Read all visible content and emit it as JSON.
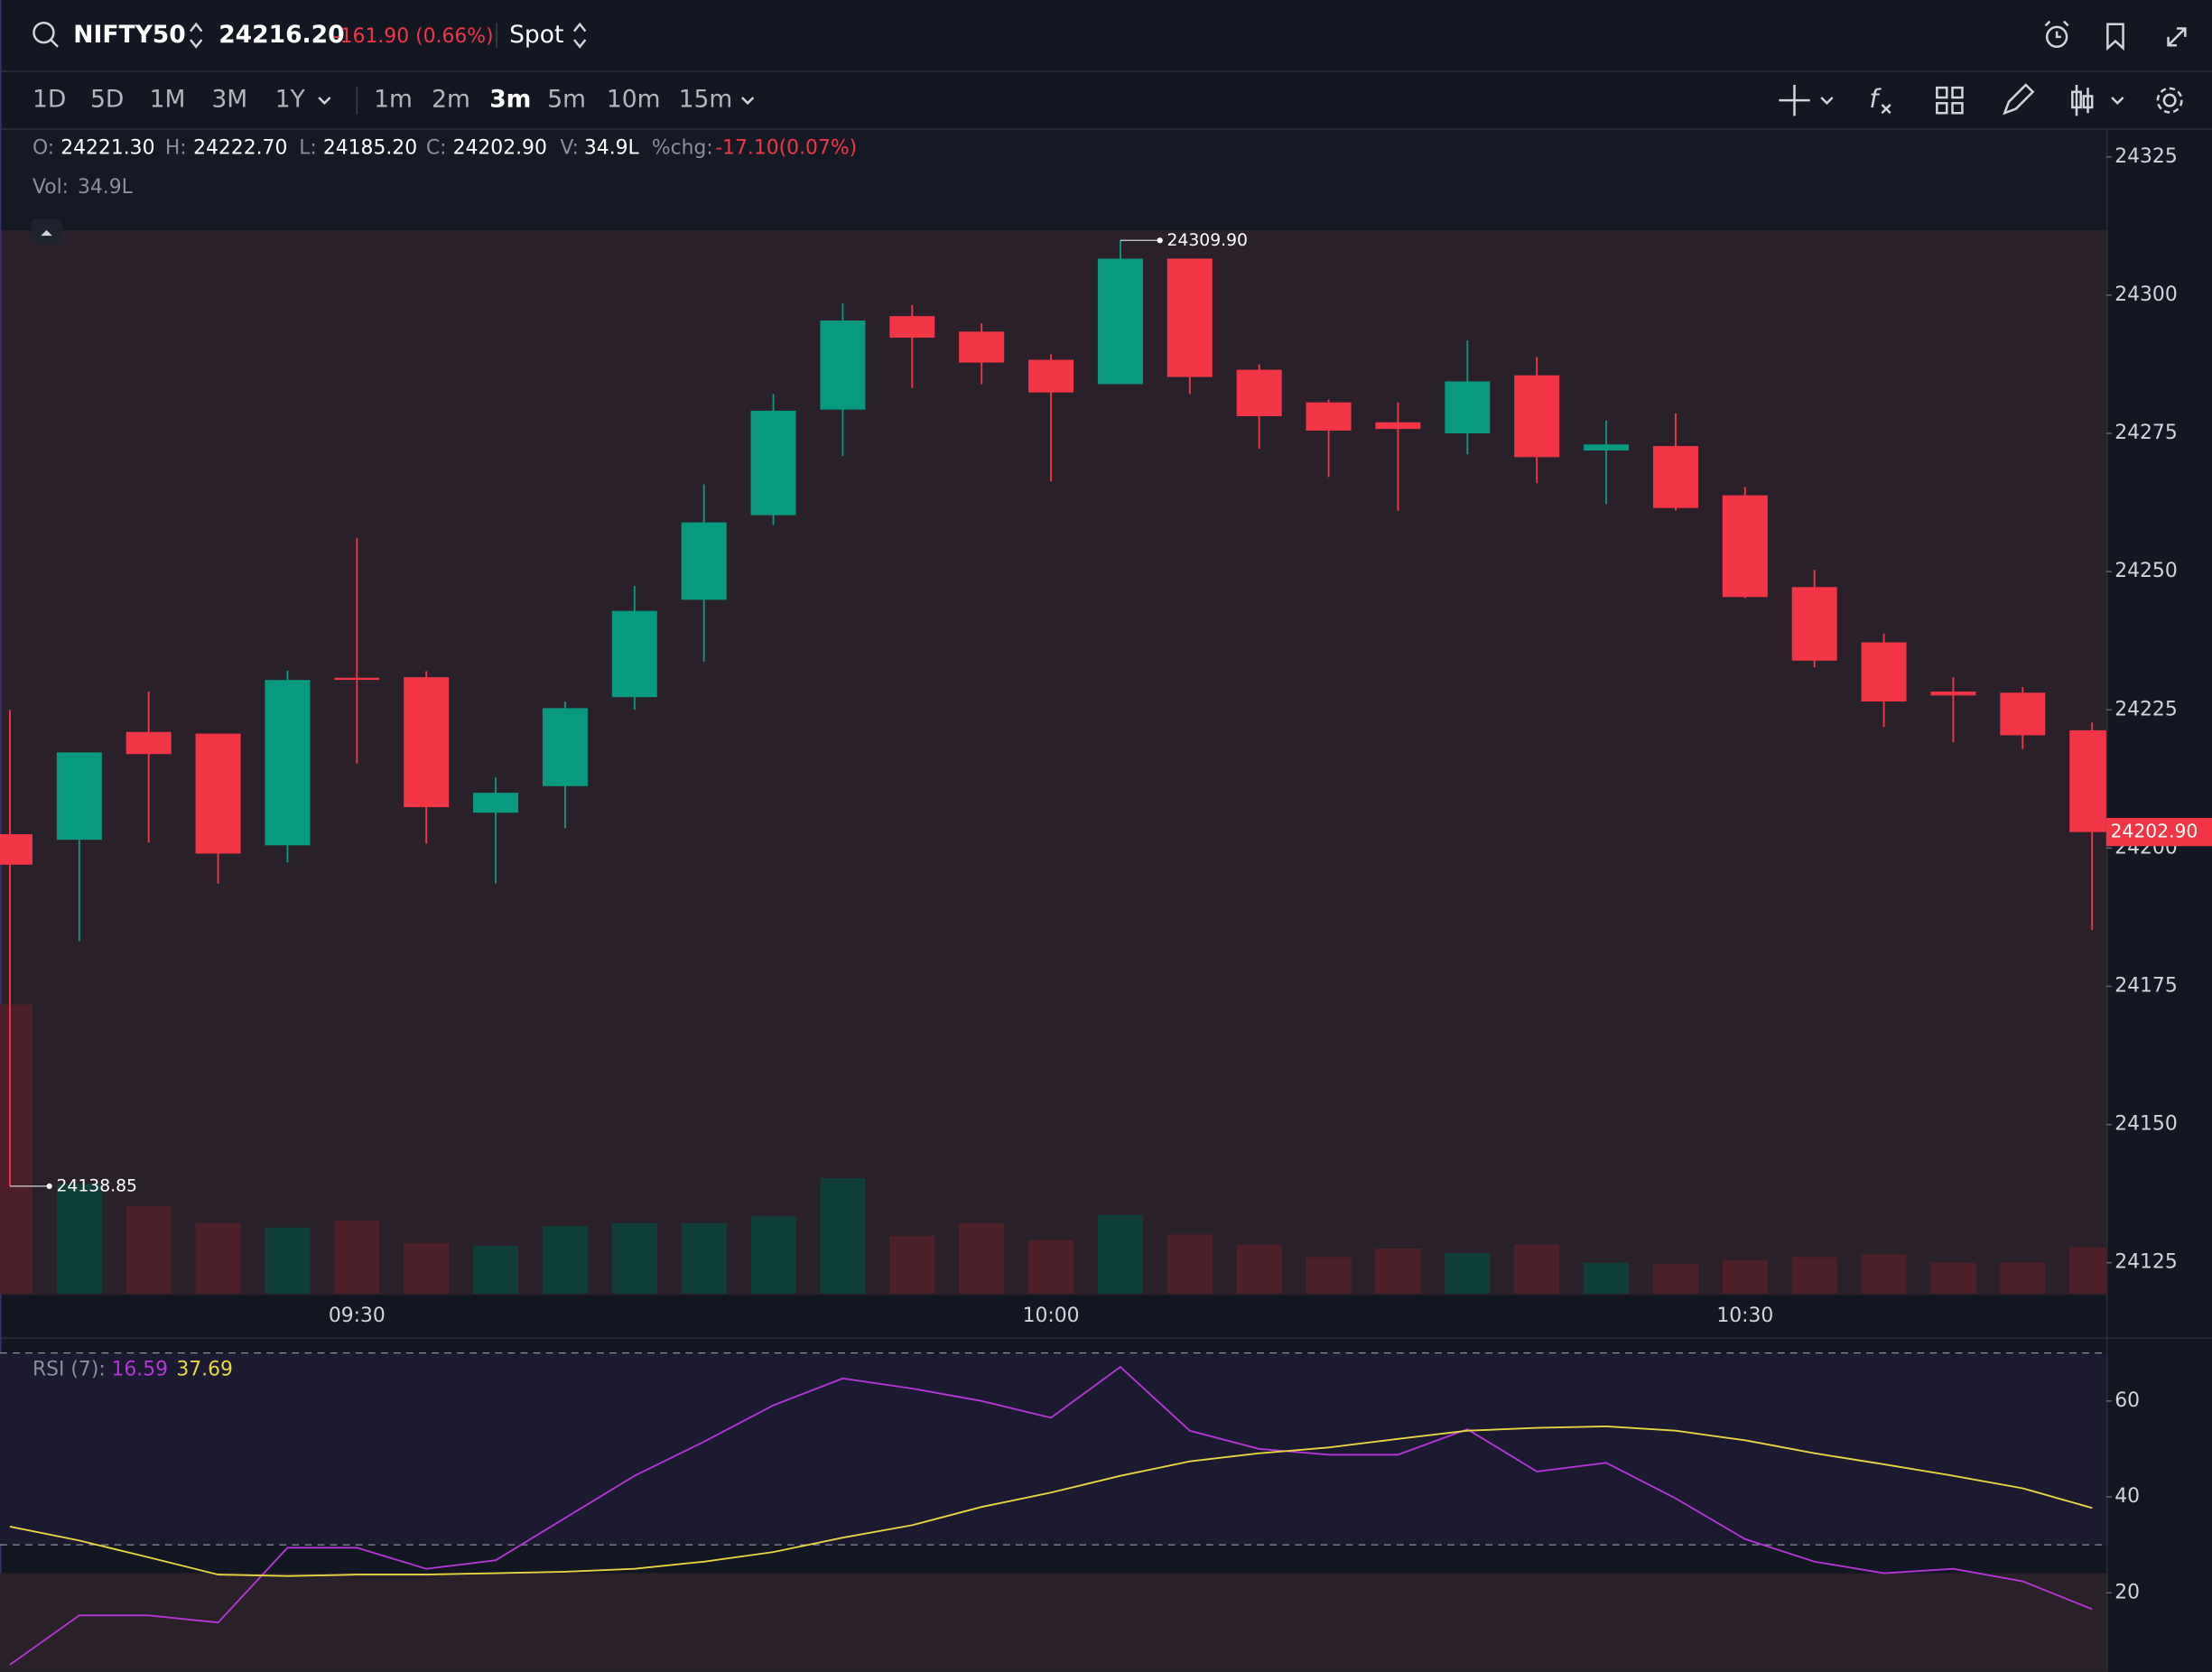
{
  "header": {
    "symbol": "NIFTY50",
    "price": "24216.20",
    "change": "-161.90 (0.66%)",
    "segment": "Spot"
  },
  "toolbar": {
    "timeframes": [
      "1D",
      "5D",
      "1M",
      "3M",
      "1Y"
    ],
    "intervals": [
      "1m",
      "2m",
      "3m",
      "5m",
      "10m",
      "15m"
    ]
  },
  "ohlc_legend": [
    {
      "key": "O:",
      "text": "24221.30"
    },
    {
      "key": "H:",
      "text": "24222.70"
    },
    {
      "key": "L:",
      "text": "24185.20"
    },
    {
      "key": "C:",
      "text": "24202.90"
    },
    {
      "key": "V:",
      "text": "34.9L"
    },
    {
      "key": "%chg:",
      "text": "-17.10(0.07%)"
    }
  ],
  "volume_legend": {
    "key": "Vol:",
    "text": "34.9L"
  },
  "chart_data": [
    {
      "type": "candlestick",
      "categories": [
        null,
        null,
        null,
        null,
        null,
        "09:30",
        null,
        null,
        null,
        null,
        null,
        null,
        null,
        null,
        null,
        "10:00",
        null,
        null,
        null,
        null,
        null,
        null,
        null,
        null,
        null,
        "10:30",
        null,
        null,
        null,
        null,
        null
      ],
      "open": [
        24202.5,
        24201.5,
        24221,
        24220.7,
        24200.5,
        24230.8,
        24230.9,
        24206.4,
        24211.2,
        24227.3,
        24244.9,
        24260.2,
        24279.3,
        24296.2,
        24293.4,
        24288.3,
        24283.9,
        24306.6,
        24286.5,
        24280.6,
        24277,
        24275,
        24285.5,
        24271.9,
        24272.7,
        24263.8,
        24247.2,
        24237.2,
        24228.3,
        24228.1,
        24221.3
      ],
      "high": [
        24225,
        24217.3,
        24228.3,
        24220.7,
        24232.1,
        24256.1,
        24232,
        24212.8,
        24226.5,
        24247.4,
        24265.8,
        24282.1,
        24298.5,
        24298.2,
        24294.9,
        24289.3,
        24309.9,
        24306.6,
        24287.5,
        24281.1,
        24280.6,
        24291.8,
        24288.8,
        24277.3,
        24278.6,
        24265.3,
        24250.3,
        24238.8,
        24230.9,
        24229.1,
        24222.7
      ],
      "low": [
        24138.85,
        24183.2,
        24201,
        24193.6,
        24197.4,
        24215.3,
        24200.8,
        24193.6,
        24203.6,
        24225,
        24233.7,
        24258.4,
        24270.9,
        24283.2,
        24283.9,
        24266.3,
        24283.9,
        24282.1,
        24272.2,
        24267.1,
        24261,
        24271.2,
        24266,
        24262.2,
        24261,
        24245.2,
        24232.7,
        24221.9,
        24219.1,
        24217.9,
        24185.2
      ],
      "close": [
        24197,
        24217.3,
        24217,
        24199,
        24230.4,
        24230.5,
        24207.4,
        24210,
        24225.3,
        24242.9,
        24258.9,
        24279.1,
        24295.4,
        24292.3,
        24287.8,
        24282.4,
        24306.6,
        24285.2,
        24278.1,
        24275.5,
        24275.8,
        24284.4,
        24270.7,
        24273,
        24261.5,
        24245.4,
        24233.9,
        24226.5,
        24227.6,
        24220.4,
        24202.9
      ],
      "volume": [
        216.9,
        82.5,
        65.6,
        52.9,
        49.7,
        55,
        38.1,
        36,
        50.8,
        52.9,
        52.9,
        58.2,
        86.8,
        43.4,
        52.9,
        40.2,
        59.2,
        44.4,
        37,
        27.5,
        33.9,
        30.7,
        37,
        23.3,
        22.2,
        25.4,
        27.5,
        29.6,
        23.3,
        23.3,
        34.9
      ],
      "up_color": "#089981",
      "down_color": "#f23645",
      "up_volume_color": "#0f3d37",
      "down_volume_color": "#4d1f29",
      "ylim": [
        24119.4,
        24329.1
      ],
      "yticks": [
        24125,
        24150,
        24175,
        24200,
        24225,
        24250,
        24275,
        24300,
        24325
      ],
      "annotations": [
        {
          "value": 24309.9,
          "label": "24309.90"
        },
        {
          "value": 24138.85,
          "label": "24138.85"
        }
      ],
      "last_price": {
        "value": 24202.9,
        "label": "24202.90"
      }
    },
    {
      "type": "line",
      "label": "RSI (7):",
      "series": [
        {
          "color": "#b535d6",
          "values": [
            5.0,
            15.3,
            15.3,
            13.8,
            29.4,
            29.4,
            25,
            26.8,
            35.6,
            44.4,
            51.5,
            59.1,
            64.7,
            62.6,
            60,
            56.5,
            67.1,
            53.8,
            50,
            48.8,
            48.8,
            54.1,
            45.3,
            47.1,
            39.7,
            31.2,
            26.5,
            24.1,
            25,
            22.4,
            16.59
          ]
        },
        {
          "color": "#e8d640",
          "values": [
            33.8,
            30.9,
            27.4,
            23.8,
            23.5,
            23.8,
            23.8,
            24.1,
            24.4,
            25,
            26.5,
            28.5,
            31.5,
            34.1,
            37.9,
            40.9,
            44.4,
            47.4,
            49.1,
            50.3,
            52.1,
            53.8,
            54.4,
            54.7,
            53.8,
            51.8,
            49.1,
            46.8,
            44.4,
            41.8,
            37.69
          ]
        }
      ],
      "ylim": [
        3.53,
        73.24
      ],
      "yticks": [
        20,
        40,
        60
      ],
      "levels": [
        70,
        30
      ]
    }
  ]
}
